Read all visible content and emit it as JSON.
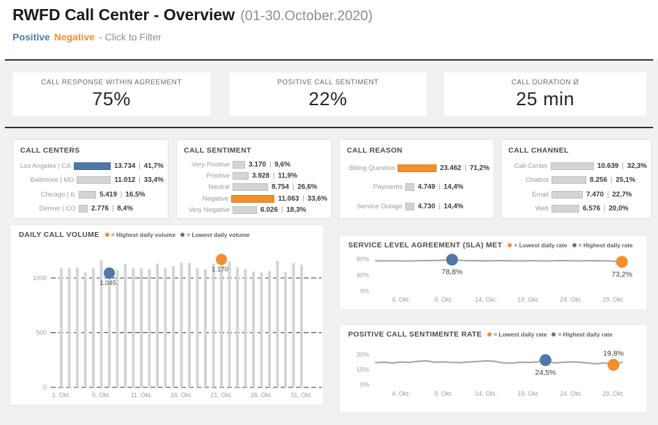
{
  "header": {
    "title": "RWFD Call Center - Overview",
    "subtitle": "(01-30.October.2020)",
    "filter": {
      "positive": "Positive",
      "negative": "Negative",
      "hint": "- Click to Filter"
    },
    "dots": ".."
  },
  "kpis": [
    {
      "label": "CALL RESPONSE WITHIN AGREEMENT",
      "value": "75%"
    },
    {
      "label": "POSITIVE CALL SENTIMENT",
      "value": "22%"
    },
    {
      "label": "CALL DURATION Ø",
      "value": "25 min"
    }
  ],
  "bar_cards": [
    {
      "title": "CALL CENTERS",
      "rows": [
        {
          "label": "Los Angeles | CA",
          "value": "13.734",
          "pct": "41,7%",
          "num": 13734,
          "color": "blue"
        },
        {
          "label": "Baltimore | MD",
          "value": "11.012",
          "pct": "33,4%",
          "num": 11012,
          "color": "gray"
        },
        {
          "label": "Chicago | IL",
          "value": "5.419",
          "pct": "16,5%",
          "num": 5419,
          "color": "gray"
        },
        {
          "label": "Denver | CO",
          "value": "2.776",
          "pct": "8,4%",
          "num": 2776,
          "color": "gray"
        }
      ]
    },
    {
      "title": "CALL SENTIMENT",
      "rows": [
        {
          "label": "Very Positive",
          "value": "3.170",
          "pct": "9,6%",
          "num": 3170,
          "color": "gray"
        },
        {
          "label": "Positive",
          "value": "3.928",
          "pct": "11,9%",
          "num": 3928,
          "color": "gray"
        },
        {
          "label": "Neutral",
          "value": "8.754",
          "pct": "26,6%",
          "num": 8754,
          "color": "gray"
        },
        {
          "label": "Negative",
          "value": "11.063",
          "pct": "33,6%",
          "num": 11063,
          "color": "orange"
        },
        {
          "label": "Very Negative",
          "value": "6.026",
          "pct": "18,3%",
          "num": 6026,
          "color": "gray"
        }
      ]
    },
    {
      "title": "CALL REASON",
      "rows": [
        {
          "label": "Billing Question",
          "value": "23.462",
          "pct": "71,2%",
          "num": 23462,
          "color": "orange"
        },
        {
          "label": "Payments",
          "value": "4.749",
          "pct": "14,4%",
          "num": 4749,
          "color": "gray"
        },
        {
          "label": "Service Outage",
          "value": "4.730",
          "pct": "14,4%",
          "num": 4730,
          "color": "gray"
        }
      ]
    },
    {
      "title": "CALL CHANNEL",
      "rows": [
        {
          "label": "Call-Center",
          "value": "10.639",
          "pct": "32,3%",
          "num": 10639,
          "color": "gray"
        },
        {
          "label": "Chatbot",
          "value": "8.256",
          "pct": "25,1%",
          "num": 8256,
          "color": "gray"
        },
        {
          "label": "Email",
          "value": "7.470",
          "pct": "22,7%",
          "num": 7470,
          "color": "gray"
        },
        {
          "label": "Web",
          "value": "6.576",
          "pct": "20,0%",
          "num": 6576,
          "color": "gray"
        }
      ]
    }
  ],
  "colors": {
    "accent_blue": "#4e79a7",
    "accent_orange": "#f28e2b",
    "bar_gray": "#d4d4d4",
    "line_gray": "#a8a8a8",
    "axis_text": "#9e9e9e"
  },
  "chart_data": [
    {
      "type": "bar",
      "title": "DAILY CALL VOLUME",
      "legend": [
        {
          "color": "#f28e2b",
          "label": "= Highest daily volume"
        },
        {
          "color": "#4e79a7",
          "label": "= Lowest daily volume"
        }
      ],
      "start_day": 1,
      "values": [
        1090,
        1092,
        1095,
        1052,
        1090,
        1164,
        1045,
        1072,
        1125,
        1090,
        1088,
        1084,
        1132,
        1094,
        1110,
        1140,
        1136,
        1090,
        1080,
        1130,
        1170,
        1150,
        1098,
        1084,
        1060,
        1052,
        1064,
        1158,
        1054,
        1136,
        1122
      ],
      "x_ticks": [
        "1. Okt.",
        "6. Okt.",
        "11. Okt.",
        "16. Okt.",
        "21. Okt.",
        "26. Okt.",
        "31. Okt."
      ],
      "x_tick_days": [
        1,
        6,
        11,
        16,
        21,
        26,
        31
      ],
      "y_ticks": [
        0,
        500,
        1000
      ],
      "y_tick_labels": [
        "0",
        "500",
        "1000"
      ],
      "ylim": [
        0,
        1250
      ],
      "grid": true,
      "annotations": [
        {
          "day": 21,
          "value": 1170,
          "label": "1.170",
          "color": "#f28e2b",
          "name": "highest-volume",
          "label_pos": "below"
        },
        {
          "day": 7,
          "value": 1045,
          "label": "1.045",
          "color": "#4e79a7",
          "name": "lowest-volume",
          "label_pos": "below"
        }
      ]
    },
    {
      "type": "line",
      "title": "SERVICE LEVEL AGREEMENT (SLA) MET",
      "legend": [
        {
          "color": "#f28e2b",
          "label": "= Lowest daily rate"
        },
        {
          "color": "#4e79a7",
          "label": "= Highest daily rate"
        }
      ],
      "start_day": 1,
      "values": [
        76.2,
        75.6,
        76.0,
        75.7,
        75.4,
        76.1,
        76.4,
        76.8,
        77.2,
        78.8,
        77.0,
        76.2,
        76.6,
        75.6,
        76.2,
        76.5,
        75.9,
        75.7,
        76.2,
        76.0,
        75.5,
        76.1,
        76.6,
        76.0,
        75.6,
        76.2,
        75.8,
        75.9,
        75.1,
        73.2
      ],
      "x_ticks": [
        "4. Okt.",
        "9. Okt.",
        "14. Okt.",
        "19. Okt.",
        "24. Okt.",
        "29. Okt."
      ],
      "x_tick_days": [
        4,
        9,
        14,
        19,
        24,
        29
      ],
      "y_ticks": [
        0,
        40,
        80
      ],
      "y_tick_labels": [
        "0%",
        "40%",
        "80%"
      ],
      "ylim": [
        0,
        100
      ],
      "grid": false,
      "annotations": [
        {
          "day": 10,
          "value": 78.8,
          "label": "78,8%",
          "color": "#4e79a7",
          "name": "highest-sla-rate",
          "label_pos": "below"
        },
        {
          "day": 30,
          "value": 73.2,
          "label": "73,2%",
          "color": "#f28e2b",
          "name": "lowest-sla-rate",
          "label_pos": "below"
        }
      ]
    },
    {
      "type": "line",
      "title": "POSITIVE CALL SENTIMENTE RATE",
      "legend": [
        {
          "color": "#f28e2b",
          "label": "= Lowest daily rate"
        },
        {
          "color": "#4e79a7",
          "label": "= Highest daily rate"
        }
      ],
      "start_day": 1,
      "values": [
        22.0,
        22.4,
        21.6,
        22.6,
        22.2,
        23.3,
        23.8,
        22.4,
        22.7,
        22.2,
        22.0,
        22.7,
        23.2,
        23.7,
        23.3,
        21.8,
        21.4,
        22.4,
        22.2,
        22.7,
        24.5,
        21.6,
        22.3,
        22.7,
        22.4,
        21.6,
        20.9,
        21.8,
        19.8,
        22.4
      ],
      "x_ticks": [
        "4. Okt.",
        "9. Okt.",
        "14. Okt.",
        "19. Okt.",
        "24. Okt.",
        "29. Okt."
      ],
      "x_tick_days": [
        4,
        9,
        14,
        19,
        24,
        29
      ],
      "y_ticks": [
        0,
        15,
        30
      ],
      "y_tick_labels": [
        "0%",
        "15%",
        "30%"
      ],
      "ylim": [
        0,
        37.5
      ],
      "grid": false,
      "annotations": [
        {
          "day": 21,
          "value": 24.5,
          "label": "24,5%",
          "color": "#4e79a7",
          "name": "highest-sentiment-rate",
          "label_pos": "below"
        },
        {
          "day": 29,
          "value": 19.8,
          "label": "19,8%",
          "color": "#f28e2b",
          "name": "lowest-sentiment-rate",
          "label_pos": "above"
        }
      ]
    }
  ]
}
